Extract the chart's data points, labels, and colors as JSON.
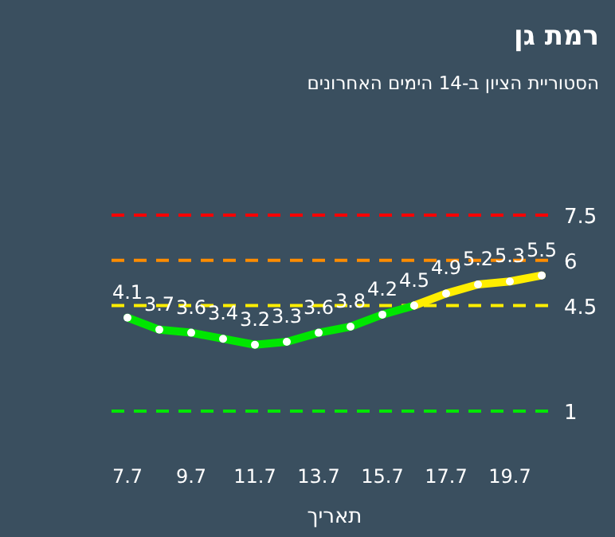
{
  "chart_data": {
    "type": "line",
    "title": "רמת גן",
    "subtitle": "הסטוריית הציון ב-14 הימים האחרונים",
    "xlabel": "תאריך",
    "categories": [
      "7.7",
      null,
      "9.7",
      null,
      "11.7",
      null,
      "13.7",
      null,
      "15.7",
      null,
      "17.7",
      null,
      "19.7",
      null
    ],
    "series": [
      {
        "color": "#00e600",
        "values": [
          4.1,
          3.7,
          3.6,
          3.4,
          3.2,
          3.3,
          3.6,
          3.8,
          4.2,
          4.5,
          null,
          null,
          null,
          null
        ],
        "value_labels": [
          "4.1",
          "3.7",
          "3.6",
          "3.4",
          "3.2",
          "3.3",
          "3.6",
          "3.8",
          "4.2",
          "4.5",
          null,
          null,
          null,
          null
        ]
      },
      {
        "color": "#ffee00",
        "values": [
          null,
          null,
          null,
          null,
          null,
          null,
          null,
          null,
          null,
          4.5,
          4.9,
          5.2,
          5.3,
          5.5
        ],
        "value_labels": [
          null,
          null,
          null,
          null,
          null,
          null,
          null,
          null,
          null,
          null,
          "4.9",
          "5.2",
          "5.3",
          "5.5"
        ]
      }
    ],
    "ref_lines": [
      {
        "axis": "y",
        "value": 7.5,
        "label": "7.5",
        "color": "#ff0000",
        "line_style": "dashed"
      },
      {
        "axis": "y",
        "value": 6,
        "label": "6",
        "color": "#ff8c00",
        "line_style": "dashed"
      },
      {
        "axis": "y",
        "value": 4.5,
        "label": "4.5",
        "color": "#ffee00",
        "line_style": "dashed"
      },
      {
        "axis": "y",
        "value": 1,
        "label": "1",
        "color": "#00e600",
        "line_style": "dashed"
      }
    ],
    "marker": "circle"
  }
}
